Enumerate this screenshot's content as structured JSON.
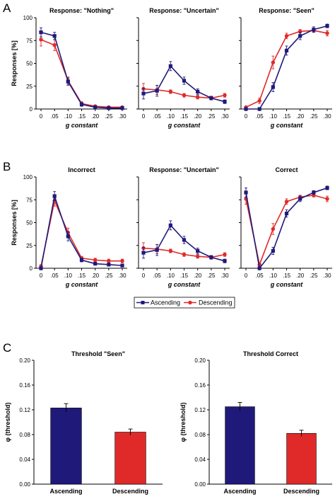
{
  "panel_letters": [
    "A",
    "B",
    "C"
  ],
  "legend": {
    "ascending": "Ascending",
    "descending": "Descending"
  },
  "colors": {
    "ascending": "#1f1a7a",
    "descending": "#e02a2a"
  },
  "chart_data": [
    {
      "type": "line",
      "panel": "A",
      "title": "Response: \"Nothing\"",
      "ylabel": "Responses [%]",
      "xlabel": "g constant",
      "categories": [
        "0",
        ".05",
        ".10",
        ".15",
        ".20",
        ".25",
        ".30"
      ],
      "ylim": [
        0,
        100
      ],
      "yticks": [
        0,
        25,
        50,
        75,
        100
      ],
      "series": [
        {
          "name": "Ascending",
          "values": [
            84,
            80,
            30,
            5,
            2,
            1,
            1
          ],
          "errors": [
            5,
            4,
            4,
            2,
            1,
            1,
            1
          ]
        },
        {
          "name": "Descending",
          "values": [
            76,
            70,
            31,
            6,
            3,
            2,
            2
          ],
          "errors": [
            7,
            6,
            4,
            2,
            1,
            1,
            1
          ]
        }
      ]
    },
    {
      "type": "line",
      "panel": "A",
      "title": "Response: \"Uncertain\"",
      "xlabel": "g constant",
      "categories": [
        "0",
        ".05",
        ".10",
        ".15",
        ".20",
        ".25",
        ".30"
      ],
      "ylim": [
        0,
        100
      ],
      "series": [
        {
          "name": "Ascending",
          "values": [
            17,
            20,
            47,
            31,
            19,
            12,
            8
          ],
          "errors": [
            6,
            6,
            5,
            4,
            3,
            2,
            2
          ]
        },
        {
          "name": "Descending",
          "values": [
            22,
            21,
            19,
            15,
            13,
            12,
            15
          ],
          "errors": [
            6,
            5,
            2,
            2,
            2,
            2,
            2
          ]
        }
      ]
    },
    {
      "type": "line",
      "panel": "A",
      "title": "Response: \"Seen\"",
      "xlabel": "g constant",
      "categories": [
        "0",
        ".05",
        ".10",
        ".15",
        ".20",
        ".25",
        ".30"
      ],
      "ylim": [
        0,
        100
      ],
      "series": [
        {
          "name": "Ascending",
          "values": [
            0,
            0,
            24,
            64,
            80,
            87,
            91
          ],
          "errors": [
            1,
            1,
            5,
            5,
            4,
            3,
            2
          ]
        },
        {
          "name": "Descending",
          "values": [
            2,
            9,
            51,
            80,
            85,
            86,
            83
          ],
          "errors": [
            1,
            3,
            7,
            3,
            2,
            2,
            3
          ]
        }
      ]
    },
    {
      "type": "line",
      "panel": "B",
      "title": "Incorrect",
      "ylabel": "Responses [%]",
      "xlabel": "g constant",
      "categories": [
        "0",
        ".05",
        ".10",
        ".15",
        ".20",
        ".25",
        ".30"
      ],
      "ylim": [
        0,
        100
      ],
      "yticks": [
        0,
        25,
        50,
        75,
        100
      ],
      "series": [
        {
          "name": "Ascending",
          "values": [
            0,
            79,
            35,
            9,
            5,
            4,
            3
          ],
          "errors": [
            1,
            5,
            5,
            2,
            1,
            1,
            1
          ]
        },
        {
          "name": "Descending",
          "values": [
            2,
            74,
            39,
            11,
            9,
            8,
            8
          ],
          "errors": [
            2,
            6,
            5,
            2,
            2,
            2,
            2
          ]
        }
      ]
    },
    {
      "type": "line",
      "panel": "B",
      "title": "Response: \"Uncertain\"",
      "xlabel": "g constant",
      "categories": [
        "0",
        ".05",
        ".10",
        ".15",
        ".20",
        ".25",
        ".30"
      ],
      "ylim": [
        0,
        100
      ],
      "series": [
        {
          "name": "Ascending",
          "values": [
            17,
            20,
            47,
            31,
            19,
            12,
            8
          ],
          "errors": [
            6,
            6,
            5,
            4,
            3,
            2,
            2
          ]
        },
        {
          "name": "Descending",
          "values": [
            22,
            21,
            19,
            15,
            13,
            12,
            15
          ],
          "errors": [
            6,
            5,
            2,
            2,
            2,
            2,
            2
          ]
        }
      ]
    },
    {
      "type": "line",
      "panel": "B",
      "title": "Correct",
      "xlabel": "g constant",
      "categories": [
        "0",
        ".05",
        ".10",
        ".15",
        ".20",
        ".25",
        ".30"
      ],
      "ylim": [
        0,
        100
      ],
      "series": [
        {
          "name": "Ascending",
          "values": [
            83,
            0,
            19,
            60,
            76,
            83,
            88
          ],
          "errors": [
            5,
            1,
            4,
            4,
            3,
            2,
            2
          ]
        },
        {
          "name": "Descending",
          "values": [
            76,
            4,
            43,
            73,
            78,
            80,
            76
          ],
          "errors": [
            6,
            2,
            6,
            3,
            2,
            2,
            3
          ]
        }
      ]
    },
    {
      "type": "bar",
      "panel": "C",
      "title": "Threshold \"Seen\"",
      "ylabel": "φ (threshold)",
      "categories": [
        "Ascending",
        "Descending"
      ],
      "values": [
        0.123,
        0.084
      ],
      "errors": [
        0.007,
        0.005
      ],
      "ylim": [
        0,
        0.2
      ],
      "yticks": [
        "0.00",
        "0.04",
        "0.08",
        "0.12",
        "0.16",
        "0.20"
      ]
    },
    {
      "type": "bar",
      "panel": "C",
      "title": "Threshold Correct",
      "ylabel": "φ (threshold)",
      "categories": [
        "Ascending",
        "Descending"
      ],
      "values": [
        0.125,
        0.082
      ],
      "errors": [
        0.007,
        0.005
      ],
      "ylim": [
        0,
        0.2
      ],
      "yticks": [
        "0.00",
        "0.04",
        "0.08",
        "0.12",
        "0.16",
        "0.20"
      ]
    }
  ]
}
